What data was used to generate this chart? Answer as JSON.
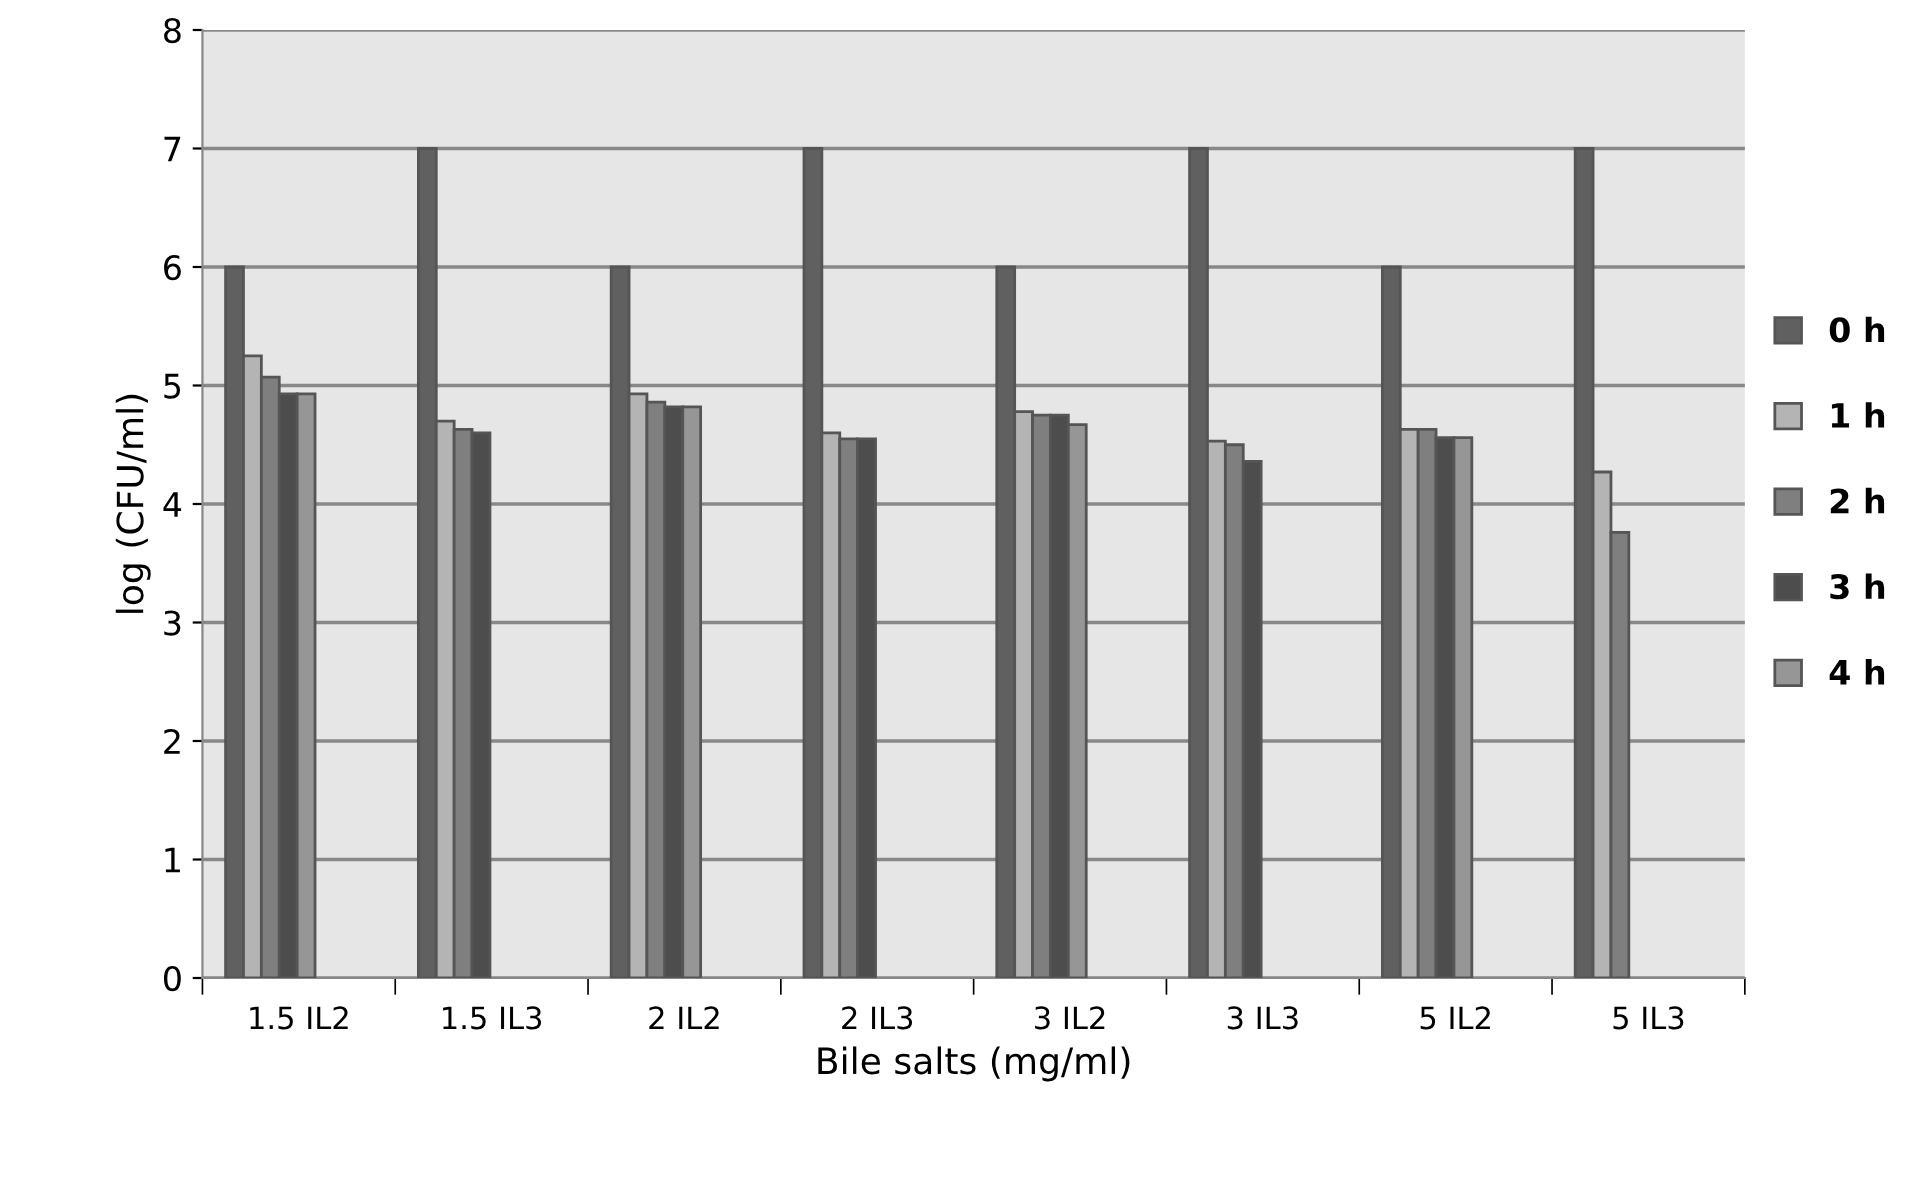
{
  "chart_data": {
    "type": "bar",
    "xlabel": "Bile salts (mg/ml)",
    "ylabel": "log (CFU/ml)",
    "categories": [
      "1.5 IL2",
      "1.5 IL3",
      "2 IL2",
      "2 IL3",
      "3 IL2",
      "3 IL3",
      "5 IL2",
      "5 IL3"
    ],
    "series": [
      {
        "name": "0 h",
        "color": "#606060",
        "values": [
          6,
          7,
          6,
          7,
          6,
          7,
          6,
          7
        ]
      },
      {
        "name": "1 h",
        "color": "#b4b4b4",
        "values": [
          5.25,
          4.7,
          4.93,
          4.6,
          4.78,
          4.53,
          4.63,
          4.27
        ]
      },
      {
        "name": "2 h",
        "color": "#7f7f7f",
        "values": [
          5.07,
          4.63,
          4.86,
          4.55,
          4.75,
          4.5,
          4.63,
          3.76
        ]
      },
      {
        "name": "3 h",
        "color": "#4d4d4d",
        "values": [
          4.93,
          4.6,
          4.82,
          4.55,
          4.75,
          4.36,
          4.56,
          null
        ]
      },
      {
        "name": "4 h",
        "color": "#969696",
        "values": [
          4.93,
          null,
          4.82,
          null,
          4.67,
          null,
          4.56,
          null
        ]
      }
    ],
    "ylim": [
      0,
      8
    ],
    "yticks": [
      0,
      1,
      2,
      3,
      4,
      5,
      6,
      7,
      8
    ],
    "grid": "y",
    "legend": "right"
  }
}
